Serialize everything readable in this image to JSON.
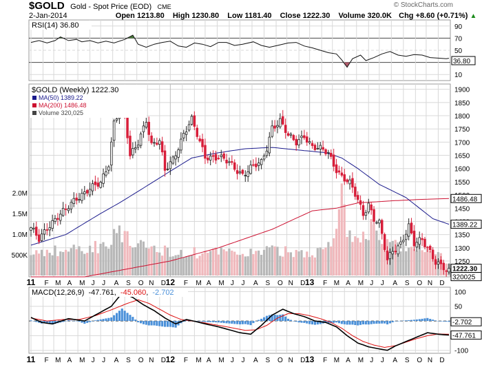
{
  "header": {
    "symbol": "$GOLD",
    "name": "Gold - Spot Price (EOD)",
    "exchange": "CME",
    "date": "2-Jan-2014",
    "watermark": "© StockCharts.com",
    "open_label": "Open",
    "open": "1213.80",
    "high_label": "High",
    "high": "1230.80",
    "low_label": "Low",
    "low": "1181.40",
    "close_label": "Close",
    "close": "1222.30",
    "volume_label": "Volume",
    "volume": "320.0K",
    "chg_label": "Chg",
    "chg": "+8.60 (+0.71%)"
  },
  "colors": {
    "up": "#222222",
    "down": "#d81e3a",
    "ma50": "#1a1a8c",
    "ma200": "#cc1030",
    "vol_up": "#b8b8b8",
    "vol_down": "#f0b8bc",
    "grid": "#d8d8d8",
    "rsi_line": "#111111",
    "rsi_fill": "#4a7a3c",
    "rsi_fill_low": "#b05a6a",
    "macd": "#000000",
    "signal": "#dd1111",
    "hist": "#4a90d9"
  },
  "chart_data": [
    {
      "type": "line",
      "title": "RSI(14) 36.80",
      "indicator": "RSI(14)",
      "last": "36.80",
      "yticks": [
        "90",
        "70",
        "50",
        "30",
        "10"
      ],
      "levels": [
        70,
        30
      ],
      "ylim": [
        0,
        100
      ],
      "points": [
        [
          0,
          63
        ],
        [
          3,
          66
        ],
        [
          6,
          62
        ],
        [
          9,
          66
        ],
        [
          11,
          72
        ],
        [
          14,
          66
        ],
        [
          17,
          68
        ],
        [
          19,
          64
        ],
        [
          22,
          66
        ],
        [
          25,
          62
        ],
        [
          28,
          65
        ],
        [
          31,
          62
        ],
        [
          35,
          68
        ],
        [
          38,
          75
        ],
        [
          40,
          60
        ],
        [
          43,
          55
        ],
        [
          46,
          60
        ],
        [
          49,
          63
        ],
        [
          52,
          65
        ],
        [
          55,
          57
        ],
        [
          58,
          55
        ],
        [
          61,
          62
        ],
        [
          64,
          60
        ],
        [
          67,
          56
        ],
        [
          70,
          63
        ],
        [
          73,
          63
        ],
        [
          76,
          58
        ],
        [
          79,
          60
        ],
        [
          83,
          64
        ],
        [
          86,
          58
        ],
        [
          89,
          55
        ],
        [
          92,
          58
        ],
        [
          96,
          62
        ],
        [
          99,
          63
        ],
        [
          102,
          57
        ],
        [
          105,
          54
        ],
        [
          108,
          50
        ],
        [
          111,
          46
        ],
        [
          114,
          44
        ],
        [
          116,
          34
        ],
        [
          118,
          22
        ],
        [
          120,
          36
        ],
        [
          123,
          42
        ],
        [
          125,
          33
        ],
        [
          128,
          38
        ],
        [
          131,
          44
        ],
        [
          134,
          48
        ],
        [
          137,
          42
        ],
        [
          140,
          40
        ],
        [
          143,
          43
        ],
        [
          146,
          42
        ],
        [
          149,
          38
        ],
        [
          152,
          37
        ],
        [
          155,
          36
        ],
        [
          156,
          36.8
        ]
      ]
    },
    {
      "type": "candlestick",
      "title": "$GOLD (Weekly) 1222.30",
      "series_label": "$GOLD (Weekly)",
      "last": "1222.30",
      "legend": [
        {
          "label": "MA(50) 1389.22",
          "color": "#1a1a8c"
        },
        {
          "label": "MA(200) 1486.48",
          "color": "#cc1030"
        },
        {
          "label": "Volume 320,025",
          "color": "#444444"
        }
      ],
      "ylim": [
        1190,
        1920
      ],
      "yticks": [
        "1900",
        "1850",
        "1800",
        "1750",
        "1700",
        "1650",
        "1600",
        "1550",
        "1500",
        "1450",
        "1400",
        "1350",
        "1300",
        "1250",
        "1200"
      ],
      "right_labels": {
        "ma200": "1486.48",
        "ma50": "1389.22",
        "last": "1222.30",
        "volume": "320025"
      },
      "volume_ticks": [
        "2.0M",
        "1.5M",
        "1.0M",
        "500K"
      ],
      "volume_max": 2.5,
      "close_anchors": [
        [
          0,
          1370
        ],
        [
          3,
          1330
        ],
        [
          6,
          1380
        ],
        [
          9,
          1410
        ],
        [
          13,
          1440
        ],
        [
          17,
          1490
        ],
        [
          21,
          1520
        ],
        [
          26,
          1540
        ],
        [
          29,
          1620
        ],
        [
          31,
          1780
        ],
        [
          34,
          1850
        ],
        [
          35,
          1800
        ],
        [
          37,
          1640
        ],
        [
          40,
          1700
        ],
        [
          43,
          1790
        ],
        [
          45,
          1690
        ],
        [
          48,
          1700
        ],
        [
          50,
          1590
        ],
        [
          53,
          1640
        ],
        [
          57,
          1730
        ],
        [
          60,
          1780
        ],
        [
          63,
          1700
        ],
        [
          65,
          1650
        ],
        [
          70,
          1640
        ],
        [
          74,
          1620
        ],
        [
          79,
          1580
        ],
        [
          82,
          1600
        ],
        [
          86,
          1620
        ],
        [
          88,
          1680
        ],
        [
          90,
          1760
        ],
        [
          93,
          1780
        ],
        [
          96,
          1720
        ],
        [
          99,
          1700
        ],
        [
          102,
          1730
        ],
        [
          105,
          1680
        ],
        [
          108,
          1670
        ],
        [
          111,
          1660
        ],
        [
          114,
          1600
        ],
        [
          116,
          1570
        ],
        [
          119,
          1540
        ],
        [
          122,
          1480
        ],
        [
          124,
          1430
        ],
        [
          126,
          1470
        ],
        [
          128,
          1410
        ],
        [
          130,
          1390
        ],
        [
          133,
          1250
        ],
        [
          135,
          1290
        ],
        [
          138,
          1320
        ],
        [
          141,
          1380
        ],
        [
          143,
          1310
        ],
        [
          146,
          1330
        ],
        [
          149,
          1290
        ],
        [
          151,
          1250
        ],
        [
          153,
          1230
        ],
        [
          155,
          1210
        ],
        [
          156,
          1222.3
        ]
      ],
      "ma50_anchors": [
        [
          0,
          1310
        ],
        [
          13,
          1350
        ],
        [
          26,
          1430
        ],
        [
          33,
          1470
        ],
        [
          41,
          1520
        ],
        [
          52,
          1590
        ],
        [
          60,
          1640
        ],
        [
          70,
          1660
        ],
        [
          80,
          1675
        ],
        [
          90,
          1680
        ],
        [
          100,
          1670
        ],
        [
          110,
          1660
        ],
        [
          116,
          1640
        ],
        [
          122,
          1600
        ],
        [
          130,
          1540
        ],
        [
          140,
          1490
        ],
        [
          150,
          1410
        ],
        [
          156,
          1389.22
        ]
      ],
      "ma200_anchors": [
        [
          0,
          1190
        ],
        [
          20,
          1190
        ],
        [
          52,
          1250
        ],
        [
          70,
          1300
        ],
        [
          90,
          1370
        ],
        [
          105,
          1440
        ],
        [
          114,
          1450
        ],
        [
          122,
          1470
        ],
        [
          135,
          1478
        ],
        [
          145,
          1483
        ],
        [
          156,
          1486.48
        ]
      ],
      "volume_anchors": [
        [
          0,
          0.55
        ],
        [
          10,
          0.6
        ],
        [
          20,
          0.65
        ],
        [
          28,
          0.75
        ],
        [
          32,
          1.2
        ],
        [
          35,
          0.9
        ],
        [
          40,
          0.7
        ],
        [
          50,
          0.6
        ],
        [
          60,
          0.55
        ],
        [
          70,
          0.55
        ],
        [
          80,
          0.55
        ],
        [
          90,
          0.6
        ],
        [
          100,
          0.55
        ],
        [
          110,
          0.6
        ],
        [
          114,
          1.0
        ],
        [
          116,
          1.9
        ],
        [
          118,
          1.1
        ],
        [
          120,
          0.95
        ],
        [
          125,
          0.85
        ],
        [
          128,
          1.3
        ],
        [
          130,
          0.9
        ],
        [
          135,
          0.7
        ],
        [
          140,
          0.65
        ],
        [
          150,
          0.55
        ],
        [
          156,
          0.32
        ]
      ]
    },
    {
      "type": "line",
      "title": "MACD(12,26,9) -47.761, -45.060, -2.702",
      "indicator": "MACD(12,26,9)",
      "macd_value": "-47.761",
      "signal_value": "-45.060",
      "hist_value": "-2.702",
      "yticks": [
        "100",
        "50",
        "0",
        "-50",
        "-100"
      ],
      "ylim": [
        -110,
        115
      ],
      "right_labels": {
        "hist": "-2.702",
        "macd": "-47.761"
      },
      "macd_anchors": [
        [
          0,
          12
        ],
        [
          4,
          -5
        ],
        [
          8,
          -10
        ],
        [
          14,
          8
        ],
        [
          20,
          0
        ],
        [
          26,
          30
        ],
        [
          30,
          50
        ],
        [
          34,
          95
        ],
        [
          38,
          80
        ],
        [
          42,
          55
        ],
        [
          46,
          35
        ],
        [
          50,
          10
        ],
        [
          54,
          -10
        ],
        [
          58,
          5
        ],
        [
          62,
          -3
        ],
        [
          66,
          -12
        ],
        [
          70,
          -20
        ],
        [
          74,
          -30
        ],
        [
          78,
          -40
        ],
        [
          82,
          -45
        ],
        [
          86,
          -15
        ],
        [
          90,
          20
        ],
        [
          94,
          40
        ],
        [
          98,
          25
        ],
        [
          102,
          15
        ],
        [
          106,
          0
        ],
        [
          110,
          -5
        ],
        [
          114,
          -20
        ],
        [
          118,
          -50
        ],
        [
          122,
          -75
        ],
        [
          126,
          -88
        ],
        [
          130,
          -95
        ],
        [
          133,
          -100
        ],
        [
          136,
          -85
        ],
        [
          140,
          -70
        ],
        [
          144,
          -55
        ],
        [
          148,
          -40
        ],
        [
          152,
          -45
        ],
        [
          156,
          -47.761
        ]
      ],
      "signal_anchors": [
        [
          0,
          10
        ],
        [
          6,
          0
        ],
        [
          12,
          5
        ],
        [
          18,
          5
        ],
        [
          24,
          18
        ],
        [
          30,
          38
        ],
        [
          36,
          60
        ],
        [
          40,
          72
        ],
        [
          44,
          60
        ],
        [
          48,
          40
        ],
        [
          52,
          20
        ],
        [
          56,
          5
        ],
        [
          60,
          0
        ],
        [
          64,
          -5
        ],
        [
          68,
          -12
        ],
        [
          72,
          -18
        ],
        [
          76,
          -25
        ],
        [
          80,
          -32
        ],
        [
          84,
          -30
        ],
        [
          88,
          -15
        ],
        [
          92,
          10
        ],
        [
          96,
          25
        ],
        [
          100,
          25
        ],
        [
          104,
          18
        ],
        [
          108,
          8
        ],
        [
          112,
          -5
        ],
        [
          116,
          -25
        ],
        [
          120,
          -50
        ],
        [
          124,
          -70
        ],
        [
          128,
          -82
        ],
        [
          132,
          -90
        ],
        [
          136,
          -84
        ],
        [
          140,
          -72
        ],
        [
          144,
          -60
        ],
        [
          148,
          -50
        ],
        [
          152,
          -44
        ],
        [
          156,
          -45.06
        ]
      ]
    }
  ],
  "x_axis": {
    "labels": [
      {
        "t": 0,
        "text": "11",
        "bold": true
      },
      {
        "t": 4.5,
        "text": "F"
      },
      {
        "t": 8.5,
        "text": "M"
      },
      {
        "t": 13,
        "text": "A"
      },
      {
        "t": 17.5,
        "text": "M"
      },
      {
        "t": 22,
        "text": "J"
      },
      {
        "t": 26,
        "text": "J"
      },
      {
        "t": 30.5,
        "text": "A"
      },
      {
        "t": 35,
        "text": "S"
      },
      {
        "t": 39.5,
        "text": "O"
      },
      {
        "t": 43.5,
        "text": "N"
      },
      {
        "t": 48,
        "text": "D"
      },
      {
        "t": 52,
        "text": "12",
        "bold": true
      },
      {
        "t": 56.5,
        "text": "F"
      },
      {
        "t": 61,
        "text": "M"
      },
      {
        "t": 65,
        "text": "A"
      },
      {
        "t": 69.5,
        "text": "M"
      },
      {
        "t": 74,
        "text": "J"
      },
      {
        "t": 78,
        "text": "J"
      },
      {
        "t": 82.5,
        "text": "A"
      },
      {
        "t": 87,
        "text": "S"
      },
      {
        "t": 91.5,
        "text": "O"
      },
      {
        "t": 95.5,
        "text": "N"
      },
      {
        "t": 100,
        "text": "D"
      },
      {
        "t": 104,
        "text": "13",
        "bold": true
      },
      {
        "t": 108.5,
        "text": "F"
      },
      {
        "t": 112.5,
        "text": "M"
      },
      {
        "t": 117,
        "text": "A"
      },
      {
        "t": 121.5,
        "text": "M"
      },
      {
        "t": 126,
        "text": "J"
      },
      {
        "t": 130,
        "text": "J"
      },
      {
        "t": 134.5,
        "text": "A"
      },
      {
        "t": 139,
        "text": "S"
      },
      {
        "t": 143.5,
        "text": "O"
      },
      {
        "t": 147.5,
        "text": "N"
      },
      {
        "t": 152,
        "text": "D"
      }
    ]
  }
}
